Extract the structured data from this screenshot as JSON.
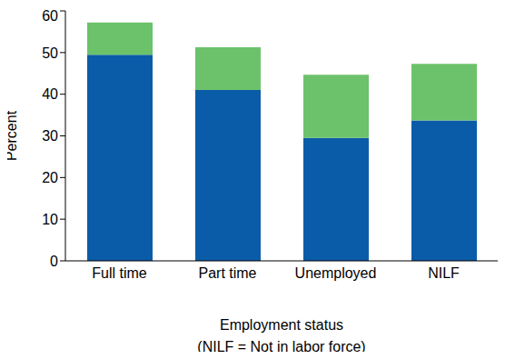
{
  "chart_data": {
    "type": "bar",
    "stacked": true,
    "categories": [
      "Full time",
      "Part time",
      "Unemployed",
      "NILF"
    ],
    "series": [
      {
        "color": "#0b5ca8",
        "values": [
          49.5,
          41,
          29.5,
          33.7
        ]
      },
      {
        "color": "#6cc26a",
        "values": [
          7.7,
          10.3,
          15.2,
          13.6
        ]
      }
    ],
    "xlabel": [
      "Employment status",
      "(NILF = Not in labor force)"
    ],
    "ylabel": "Percent",
    "ylim": [
      0,
      60
    ],
    "yticks": [
      0,
      10,
      20,
      30,
      40,
      50,
      60
    ],
    "grid": false
  }
}
